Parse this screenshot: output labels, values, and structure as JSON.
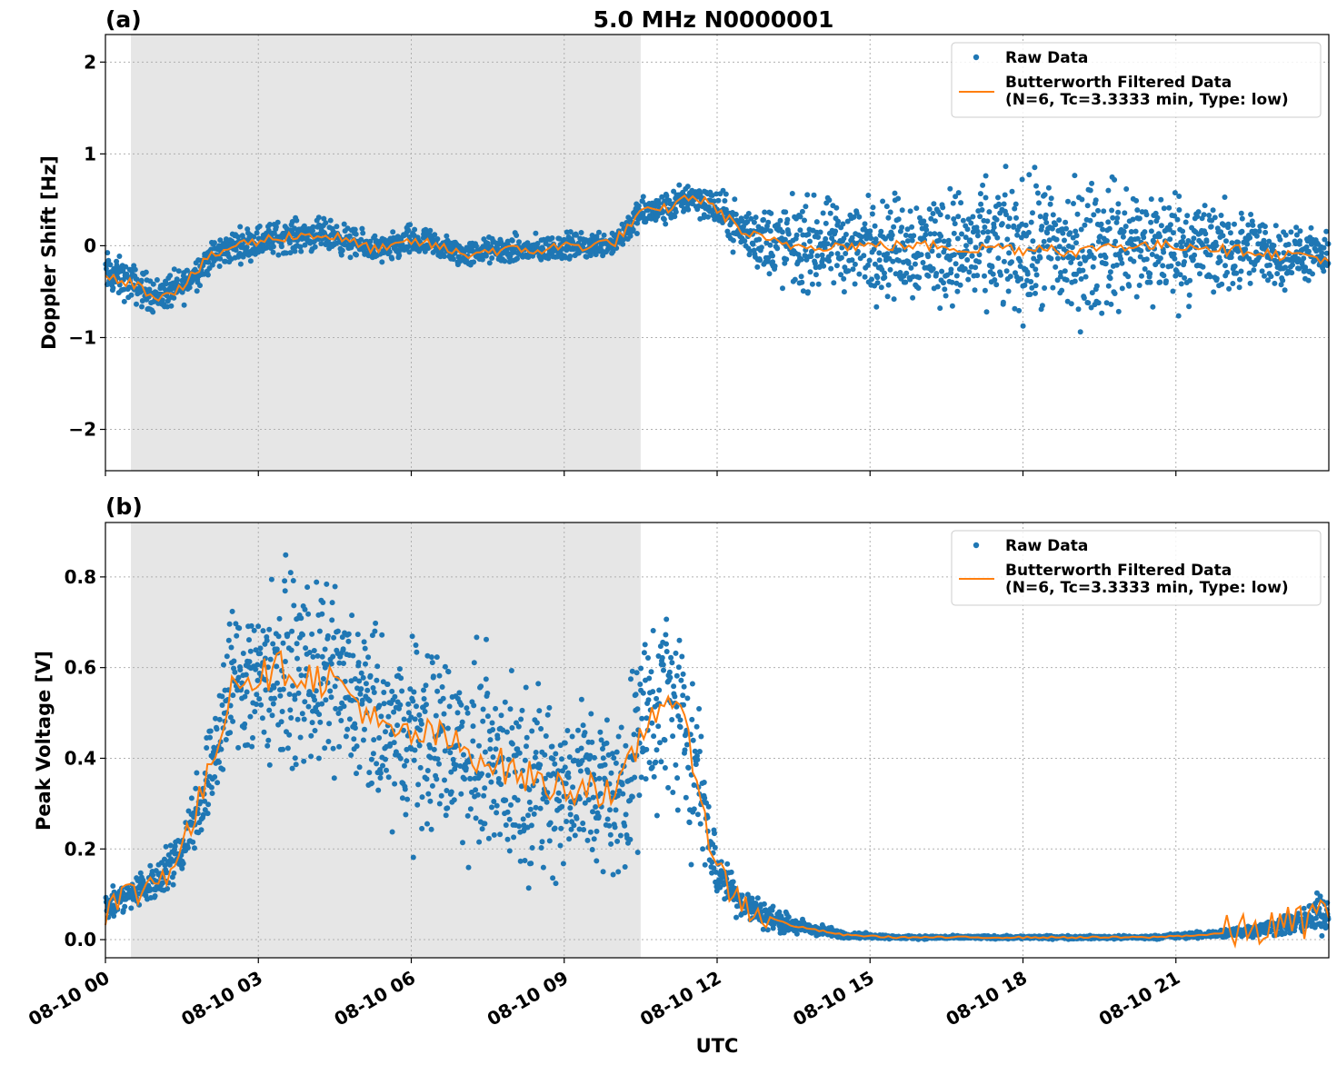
{
  "figure": {
    "title": "5.0 MHz N0000001",
    "xlabel": "UTC",
    "x_tick_labels": [
      "08-10 00",
      "08-10 03",
      "08-10 06",
      "08-10 09",
      "08-10 12",
      "08-10 15",
      "08-10 18",
      "08-10 21"
    ]
  },
  "colors": {
    "raw": "#1f77b4",
    "filtered": "#ff7f0e",
    "shade": "#e6e6e6"
  },
  "chart_data": [
    {
      "type": "scatter",
      "panel_label": "(a)",
      "title": "5.0 MHz N0000001",
      "xlabel": "",
      "ylabel": "Doppler Shift [Hz]",
      "x_unit": "UTC hours",
      "xlim": [
        0,
        24
      ],
      "ylim": [
        -2.45,
        2.3
      ],
      "y_ticks": [
        -2,
        -1,
        0,
        1,
        2
      ],
      "y_tick_labels": [
        "−2",
        "−1",
        "0",
        "1",
        "2"
      ],
      "grid": true,
      "legend_position": "top-right",
      "shaded_interval": [
        0.5,
        10.5
      ],
      "series": [
        {
          "name": "Raw Data",
          "kind": "scatter",
          "x": [
            0,
            0.5,
            1,
            1.5,
            2,
            2.5,
            3,
            3.5,
            4,
            4.5,
            5,
            5.5,
            6,
            6.5,
            7,
            7.5,
            8,
            8.5,
            9,
            9.5,
            10,
            10.5,
            11,
            11.5,
            12,
            12.5,
            13,
            13.5,
            14,
            14.5,
            15,
            15.5,
            16,
            16.5,
            17,
            17.5,
            18,
            18.5,
            19,
            19.5,
            20,
            20.5,
            21,
            21.5,
            22,
            22.5,
            23,
            23.5,
            24
          ],
          "center": [
            -0.3,
            -0.4,
            -0.55,
            -0.45,
            -0.15,
            0.0,
            0.05,
            0.1,
            0.12,
            0.1,
            0.0,
            -0.05,
            0.05,
            0.0,
            -0.1,
            -0.05,
            -0.05,
            -0.05,
            0.0,
            0.0,
            0.05,
            0.35,
            0.4,
            0.55,
            0.4,
            0.15,
            0.05,
            0.0,
            0.0,
            0.0,
            0.0,
            0.0,
            0.0,
            0.0,
            -0.05,
            0.0,
            -0.05,
            0.0,
            -0.1,
            0.0,
            0.0,
            0.0,
            0.0,
            0.0,
            -0.05,
            -0.05,
            -0.1,
            -0.1,
            -0.15
          ],
          "spread": [
            0.35,
            0.3,
            0.28,
            0.28,
            0.25,
            0.25,
            0.25,
            0.25,
            0.25,
            0.25,
            0.22,
            0.22,
            0.25,
            0.22,
            0.2,
            0.2,
            0.22,
            0.22,
            0.2,
            0.2,
            0.22,
            0.25,
            0.25,
            0.25,
            0.3,
            0.4,
            0.6,
            0.7,
            0.7,
            0.7,
            0.75,
            0.8,
            0.85,
            0.9,
            0.95,
            1.0,
            1.05,
            1.1,
            1.1,
            1.05,
            1.0,
            0.95,
            0.9,
            0.8,
            0.7,
            0.6,
            0.5,
            0.4,
            0.35
          ]
        },
        {
          "name": "Butterworth Filtered Data\n(N=6, Tc=3.3333 min, Type: low)",
          "kind": "line",
          "x": [
            0,
            0.5,
            1,
            1.5,
            2,
            2.5,
            3,
            3.5,
            4,
            4.5,
            5,
            5.5,
            6,
            6.5,
            7,
            7.5,
            8,
            8.5,
            9,
            9.5,
            10,
            10.5,
            11,
            11.5,
            12,
            12.5,
            13,
            13.5,
            14,
            14.5,
            15,
            15.5,
            16,
            16.5,
            17,
            17.5,
            18,
            18.5,
            19,
            19.5,
            20,
            20.5,
            21,
            21.5,
            22,
            22.5,
            23,
            23.5,
            24
          ],
          "values": [
            -0.3,
            -0.4,
            -0.55,
            -0.45,
            -0.15,
            0.0,
            0.05,
            0.1,
            0.12,
            0.1,
            0.0,
            -0.05,
            0.05,
            0.0,
            -0.1,
            -0.05,
            -0.05,
            -0.05,
            0.0,
            0.0,
            0.05,
            0.35,
            0.4,
            0.55,
            0.4,
            0.15,
            0.05,
            0.0,
            0.0,
            0.0,
            0.0,
            0.0,
            0.0,
            0.0,
            -0.05,
            0.0,
            -0.05,
            0.0,
            -0.1,
            0.0,
            0.0,
            0.0,
            0.0,
            0.0,
            -0.05,
            -0.05,
            -0.1,
            -0.1,
            -0.15
          ]
        }
      ]
    },
    {
      "type": "scatter",
      "panel_label": "(b)",
      "title": "",
      "xlabel": "UTC",
      "ylabel": "Peak Voltage [V]",
      "x_unit": "UTC hours",
      "xlim": [
        0,
        24
      ],
      "ylim": [
        -0.04,
        0.92
      ],
      "y_ticks": [
        0.0,
        0.2,
        0.4,
        0.6,
        0.8
      ],
      "y_tick_labels": [
        "0.0",
        "0.2",
        "0.4",
        "0.6",
        "0.8"
      ],
      "grid": true,
      "legend_position": "top-right",
      "shaded_interval": [
        0.5,
        10.5
      ],
      "series": [
        {
          "name": "Raw Data",
          "kind": "scatter",
          "x": [
            0,
            0.5,
            1,
            1.5,
            2,
            2.5,
            3,
            3.5,
            4,
            4.5,
            5,
            5.5,
            6,
            6.5,
            7,
            7.5,
            8,
            8.5,
            9,
            9.5,
            10,
            10.5,
            11,
            11.5,
            12,
            12.5,
            13,
            13.5,
            14,
            14.5,
            15,
            15.5,
            16,
            16.5,
            17,
            17.5,
            18,
            18.5,
            19,
            19.5,
            20,
            20.5,
            21,
            21.5,
            22,
            22.5,
            23,
            23.5,
            24
          ],
          "center": [
            0.07,
            0.1,
            0.13,
            0.2,
            0.35,
            0.58,
            0.58,
            0.6,
            0.58,
            0.57,
            0.52,
            0.45,
            0.45,
            0.45,
            0.42,
            0.4,
            0.37,
            0.35,
            0.33,
            0.35,
            0.3,
            0.45,
            0.55,
            0.42,
            0.15,
            0.08,
            0.05,
            0.03,
            0.02,
            0.01,
            0.008,
            0.005,
            0.005,
            0.005,
            0.005,
            0.005,
            0.005,
            0.005,
            0.005,
            0.005,
            0.005,
            0.005,
            0.008,
            0.01,
            0.015,
            0.02,
            0.03,
            0.04,
            0.07
          ],
          "spread": [
            0.05,
            0.05,
            0.06,
            0.08,
            0.15,
            0.25,
            0.28,
            0.28,
            0.28,
            0.28,
            0.28,
            0.28,
            0.3,
            0.3,
            0.3,
            0.3,
            0.3,
            0.28,
            0.28,
            0.28,
            0.25,
            0.3,
            0.3,
            0.3,
            0.08,
            0.05,
            0.04,
            0.03,
            0.02,
            0.01,
            0.008,
            0.005,
            0.005,
            0.005,
            0.005,
            0.005,
            0.005,
            0.005,
            0.005,
            0.005,
            0.005,
            0.005,
            0.008,
            0.01,
            0.015,
            0.02,
            0.03,
            0.04,
            0.08
          ]
        },
        {
          "name": "Butterworth Filtered Data\n(N=6, Tc=3.3333 min, Type: low)",
          "kind": "line",
          "x": [
            0,
            0.5,
            1,
            1.5,
            2,
            2.5,
            3,
            3.5,
            4,
            4.5,
            5,
            5.5,
            6,
            6.5,
            7,
            7.5,
            8,
            8.5,
            9,
            9.5,
            10,
            10.5,
            11,
            11.5,
            12,
            12.5,
            13,
            13.5,
            14,
            14.5,
            15,
            15.5,
            16,
            16.5,
            17,
            17.5,
            18,
            18.5,
            19,
            19.5,
            20,
            20.5,
            21,
            21.5,
            22,
            22.5,
            23,
            23.5,
            24
          ],
          "values": [
            0.07,
            0.1,
            0.13,
            0.2,
            0.35,
            0.58,
            0.58,
            0.6,
            0.58,
            0.57,
            0.52,
            0.45,
            0.45,
            0.45,
            0.42,
            0.4,
            0.37,
            0.35,
            0.33,
            0.35,
            0.3,
            0.45,
            0.55,
            0.42,
            0.15,
            0.08,
            0.05,
            0.03,
            0.02,
            0.01,
            0.008,
            0.005,
            0.005,
            0.005,
            0.005,
            0.005,
            0.005,
            0.005,
            0.005,
            0.005,
            0.005,
            0.005,
            0.008,
            0.01,
            0.015,
            0.02,
            0.03,
            0.04,
            0.07
          ]
        }
      ]
    }
  ]
}
